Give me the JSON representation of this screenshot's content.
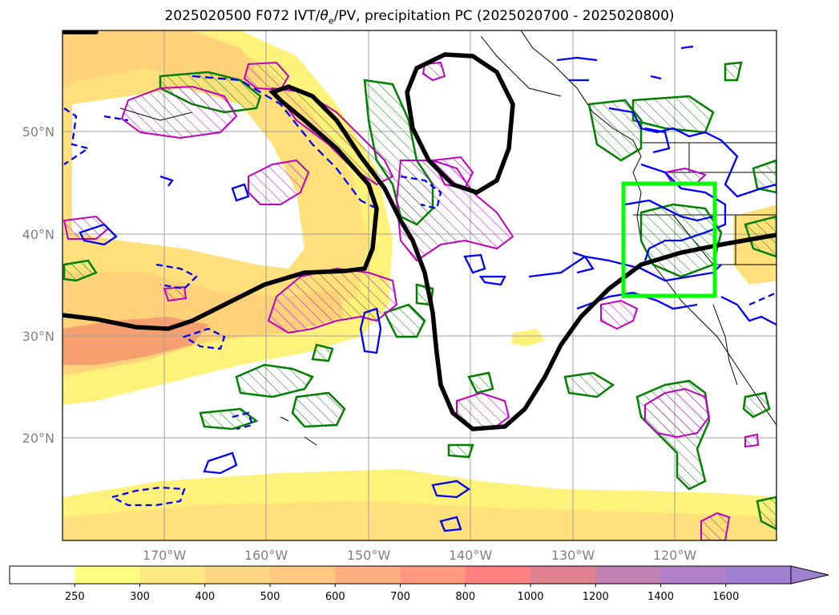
{
  "title": {
    "prefix": "2025020500 F072 IVT/",
    "theta": "θ",
    "sub": "e",
    "suffix": "/PV, precipitation PC (2025020700 - 2025020800)"
  },
  "map": {
    "lat_labels": [
      "50°N",
      "40°N",
      "30°N",
      "20°N"
    ],
    "lon_labels": [
      "170°W",
      "160°W",
      "150°W",
      "140°W",
      "130°W",
      "120°W"
    ],
    "lat_ticks": [
      50,
      40,
      30,
      20
    ],
    "lon_ticks": [
      -170,
      -160,
      -150,
      -140,
      -130,
      -120
    ],
    "extent": {
      "lon_min": -180,
      "lon_max": -110,
      "lat_min": 10,
      "lat_max": 60
    },
    "highlight_box": {
      "lon_min": -125,
      "lon_max": -116,
      "lat_min": 34,
      "lat_max": 45,
      "color": "#00ff00"
    }
  },
  "colorbar": {
    "labels": [
      "250",
      "300",
      "400",
      "500",
      "600",
      "700",
      "800",
      "1000",
      "1200",
      "1400",
      "1600"
    ],
    "colors": [
      "#ffffff",
      "#ffff80",
      "#ffeb80",
      "#ffd680",
      "#ffc880",
      "#ffb080",
      "#ff9a80",
      "#ff8080",
      "#e08090",
      "#c080b0",
      "#b080c8",
      "#a080d0"
    ]
  },
  "colors": {
    "ivt_low": "#fff27a",
    "ivt_mid": "#ffd27a",
    "ivt_high": "#f6a070",
    "thetae_contour": "#000000",
    "pv_positive": "#0000ff",
    "precip_green": "#008000",
    "precip_magenta": "#c000c0"
  }
}
